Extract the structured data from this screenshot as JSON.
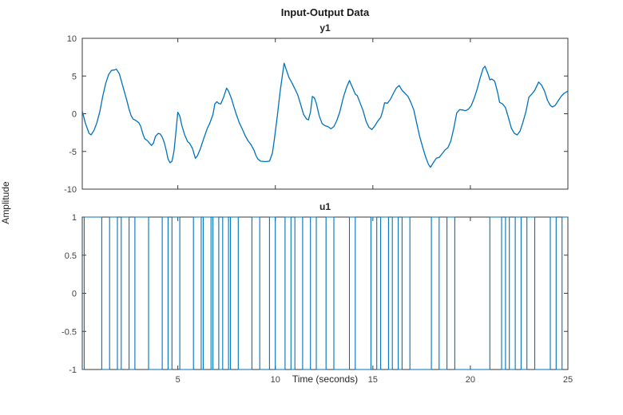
{
  "figure": {
    "title": "Input-Output Data",
    "background": "#ffffff"
  },
  "labels": {
    "xlabel": "Time (seconds)",
    "ylabel": "Amplitude"
  },
  "colors": {
    "axis_box": "#3a3a3a",
    "tick_label": "#424242",
    "line": "#0072BD"
  },
  "chart_data": [
    {
      "type": "line",
      "id": "y1",
      "title": "y1",
      "xlim": [
        0.1,
        25
      ],
      "ylim": [
        -10,
        10
      ],
      "xticks": [
        5,
        10,
        15,
        20,
        25
      ],
      "show_xtick_labels": false,
      "yticks": [
        10,
        5,
        0,
        -5,
        -10
      ],
      "grid": false,
      "line_color": "#0072BD",
      "points": [
        [
          0.1,
          0.35
        ],
        [
          0.25,
          -1.2
        ],
        [
          0.45,
          -2.6
        ],
        [
          0.55,
          -2.8
        ],
        [
          0.7,
          -2.2
        ],
        [
          0.85,
          -1.2
        ],
        [
          1.0,
          0.3
        ],
        [
          1.15,
          2.3
        ],
        [
          1.3,
          4.0
        ],
        [
          1.45,
          5.2
        ],
        [
          1.6,
          5.75
        ],
        [
          1.75,
          5.8
        ],
        [
          1.85,
          5.9
        ],
        [
          2.0,
          5.3
        ],
        [
          2.1,
          4.4
        ],
        [
          2.25,
          3.0
        ],
        [
          2.4,
          1.6
        ],
        [
          2.5,
          0.6
        ],
        [
          2.6,
          -0.2
        ],
        [
          2.7,
          -0.7
        ],
        [
          2.85,
          -0.9
        ],
        [
          3.0,
          -1.2
        ],
        [
          3.1,
          -1.7
        ],
        [
          3.2,
          -2.6
        ],
        [
          3.3,
          -3.3
        ],
        [
          3.45,
          -3.6
        ],
        [
          3.55,
          -3.9
        ],
        [
          3.65,
          -4.2
        ],
        [
          3.75,
          -3.9
        ],
        [
          3.85,
          -3.0
        ],
        [
          4.0,
          -2.6
        ],
        [
          4.1,
          -2.7
        ],
        [
          4.2,
          -3.1
        ],
        [
          4.3,
          -3.8
        ],
        [
          4.4,
          -4.8
        ],
        [
          4.5,
          -6.0
        ],
        [
          4.6,
          -6.5
        ],
        [
          4.7,
          -6.3
        ],
        [
          4.8,
          -5.0
        ],
        [
          4.9,
          -2.5
        ],
        [
          5.0,
          0.2
        ],
        [
          5.1,
          -0.3
        ],
        [
          5.2,
          -1.5
        ],
        [
          5.35,
          -2.8
        ],
        [
          5.5,
          -3.7
        ],
        [
          5.6,
          -3.9
        ],
        [
          5.75,
          -4.6
        ],
        [
          5.9,
          -5.9
        ],
        [
          6.0,
          -5.6
        ],
        [
          6.15,
          -4.7
        ],
        [
          6.3,
          -3.5
        ],
        [
          6.5,
          -2.0
        ],
        [
          6.65,
          -1.2
        ],
        [
          6.8,
          -0.1
        ],
        [
          6.9,
          1.3
        ],
        [
          7.0,
          1.6
        ],
        [
          7.1,
          1.35
        ],
        [
          7.2,
          1.3
        ],
        [
          7.35,
          2.2
        ],
        [
          7.5,
          3.4
        ],
        [
          7.6,
          3.0
        ],
        [
          7.75,
          2.0
        ],
        [
          7.9,
          0.7
        ],
        [
          8.0,
          -0.1
        ],
        [
          8.15,
          -1.2
        ],
        [
          8.3,
          -2.0
        ],
        [
          8.45,
          -2.9
        ],
        [
          8.6,
          -3.6
        ],
        [
          8.75,
          -4.1
        ],
        [
          8.9,
          -4.8
        ],
        [
          9.0,
          -5.5
        ],
        [
          9.1,
          -6.0
        ],
        [
          9.25,
          -6.3
        ],
        [
          9.5,
          -6.35
        ],
        [
          9.7,
          -6.3
        ],
        [
          9.85,
          -5.2
        ],
        [
          9.95,
          -3.4
        ],
        [
          10.1,
          -0.3
        ],
        [
          10.25,
          3.0
        ],
        [
          10.4,
          5.8
        ],
        [
          10.45,
          6.7
        ],
        [
          10.55,
          5.9
        ],
        [
          10.7,
          4.8
        ],
        [
          10.85,
          4.1
        ],
        [
          11.0,
          3.3
        ],
        [
          11.15,
          2.5
        ],
        [
          11.3,
          1.2
        ],
        [
          11.45,
          -0.1
        ],
        [
          11.6,
          -0.7
        ],
        [
          11.7,
          -0.8
        ],
        [
          11.8,
          0.2
        ],
        [
          11.9,
          2.3
        ],
        [
          12.0,
          2.1
        ],
        [
          12.1,
          1.4
        ],
        [
          12.25,
          -0.3
        ],
        [
          12.4,
          -1.3
        ],
        [
          12.55,
          -1.6
        ],
        [
          12.7,
          -1.7
        ],
        [
          12.85,
          -2.0
        ],
        [
          13.0,
          -1.7
        ],
        [
          13.15,
          -0.9
        ],
        [
          13.3,
          0.2
        ],
        [
          13.5,
          2.3
        ],
        [
          13.65,
          3.5
        ],
        [
          13.8,
          4.4
        ],
        [
          13.95,
          3.5
        ],
        [
          14.1,
          2.6
        ],
        [
          14.2,
          2.4
        ],
        [
          14.35,
          1.4
        ],
        [
          14.5,
          0.4
        ],
        [
          14.65,
          -1.0
        ],
        [
          14.8,
          -1.8
        ],
        [
          14.95,
          -2.1
        ],
        [
          15.1,
          -1.6
        ],
        [
          15.25,
          -1.0
        ],
        [
          15.4,
          -0.5
        ],
        [
          15.5,
          0.3
        ],
        [
          15.6,
          1.45
        ],
        [
          15.75,
          1.4
        ],
        [
          15.9,
          1.9
        ],
        [
          16.05,
          2.7
        ],
        [
          16.2,
          3.4
        ],
        [
          16.35,
          3.75
        ],
        [
          16.5,
          3.1
        ],
        [
          16.65,
          2.7
        ],
        [
          16.8,
          2.3
        ],
        [
          16.95,
          1.5
        ],
        [
          17.1,
          0.5
        ],
        [
          17.25,
          -1.3
        ],
        [
          17.4,
          -3.0
        ],
        [
          17.55,
          -4.4
        ],
        [
          17.7,
          -5.7
        ],
        [
          17.85,
          -6.7
        ],
        [
          17.95,
          -7.1
        ],
        [
          18.1,
          -6.5
        ],
        [
          18.25,
          -5.9
        ],
        [
          18.4,
          -5.8
        ],
        [
          18.55,
          -5.3
        ],
        [
          18.7,
          -4.8
        ],
        [
          18.85,
          -4.5
        ],
        [
          19.0,
          -3.6
        ],
        [
          19.15,
          -1.9
        ],
        [
          19.3,
          0.1
        ],
        [
          19.45,
          0.55
        ],
        [
          19.6,
          0.5
        ],
        [
          19.75,
          0.4
        ],
        [
          19.9,
          0.6
        ],
        [
          20.05,
          1.1
        ],
        [
          20.2,
          2.1
        ],
        [
          20.35,
          3.3
        ],
        [
          20.5,
          4.7
        ],
        [
          20.65,
          6.0
        ],
        [
          20.75,
          6.3
        ],
        [
          20.9,
          5.3
        ],
        [
          21.0,
          4.5
        ],
        [
          21.1,
          4.6
        ],
        [
          21.25,
          4.3
        ],
        [
          21.4,
          2.8
        ],
        [
          21.5,
          1.5
        ],
        [
          21.65,
          1.3
        ],
        [
          21.8,
          0.8
        ],
        [
          21.95,
          -0.5
        ],
        [
          22.1,
          -1.9
        ],
        [
          22.25,
          -2.6
        ],
        [
          22.4,
          -2.8
        ],
        [
          22.55,
          -2.3
        ],
        [
          22.7,
          -1.1
        ],
        [
          22.85,
          0.3
        ],
        [
          23.0,
          2.2
        ],
        [
          23.15,
          2.6
        ],
        [
          23.3,
          3.1
        ],
        [
          23.5,
          4.2
        ],
        [
          23.65,
          3.8
        ],
        [
          23.8,
          3.0
        ],
        [
          23.95,
          1.8
        ],
        [
          24.1,
          1.1
        ],
        [
          24.2,
          0.9
        ],
        [
          24.35,
          1.1
        ],
        [
          24.5,
          1.7
        ],
        [
          24.65,
          2.3
        ],
        [
          24.8,
          2.7
        ],
        [
          25.0,
          3.0
        ]
      ]
    },
    {
      "type": "step",
      "id": "u1",
      "title": "u1",
      "xlim": [
        0.1,
        25
      ],
      "ylim": [
        -1,
        1
      ],
      "xticks": [
        5,
        10,
        15,
        20,
        25
      ],
      "show_xtick_labels": true,
      "yticks": [
        1,
        0.5,
        0,
        -0.5,
        -1
      ],
      "grid": false,
      "line_color": "#0072BD",
      "x_end": 25,
      "steps": [
        [
          0.1,
          -1
        ],
        [
          0.2,
          1
        ],
        [
          1.1,
          -1
        ],
        [
          1.5,
          1
        ],
        [
          1.9,
          -1
        ],
        [
          2.1,
          1
        ],
        [
          2.5,
          -1
        ],
        [
          2.8,
          1
        ],
        [
          3.5,
          -1
        ],
        [
          4.2,
          1
        ],
        [
          4.5,
          -1
        ],
        [
          4.7,
          1
        ],
        [
          5.1,
          -1
        ],
        [
          5.8,
          1
        ],
        [
          6.2,
          -1
        ],
        [
          6.3,
          1
        ],
        [
          6.7,
          -1
        ],
        [
          6.8,
          1
        ],
        [
          7.1,
          -1
        ],
        [
          7.3,
          1
        ],
        [
          7.6,
          -1
        ],
        [
          7.7,
          1
        ],
        [
          8.1,
          -1
        ],
        [
          8.8,
          1
        ],
        [
          9.2,
          -1
        ],
        [
          9.7,
          1
        ],
        [
          10.0,
          -1
        ],
        [
          10.5,
          1
        ],
        [
          10.8,
          -1
        ],
        [
          11.0,
          1
        ],
        [
          11.4,
          -1
        ],
        [
          11.8,
          1
        ],
        [
          12.1,
          -1
        ],
        [
          12.6,
          1
        ],
        [
          13.0,
          -1
        ],
        [
          13.8,
          1
        ],
        [
          14.1,
          -1
        ],
        [
          14.9,
          1
        ],
        [
          15.2,
          -1
        ],
        [
          15.4,
          1
        ],
        [
          15.8,
          -1
        ],
        [
          16.0,
          1
        ],
        [
          16.3,
          -1
        ],
        [
          16.5,
          1
        ],
        [
          16.9,
          -1
        ],
        [
          18.0,
          1
        ],
        [
          18.4,
          -1
        ],
        [
          18.8,
          1
        ],
        [
          19.2,
          -1
        ],
        [
          21.0,
          1
        ],
        [
          21.6,
          -1
        ],
        [
          21.8,
          1
        ],
        [
          22.0,
          -1
        ],
        [
          22.3,
          1
        ],
        [
          22.6,
          -1
        ],
        [
          22.9,
          1
        ],
        [
          23.3,
          -1
        ],
        [
          24.1,
          1
        ],
        [
          24.4,
          -1
        ],
        [
          24.7,
          1
        ]
      ]
    }
  ]
}
